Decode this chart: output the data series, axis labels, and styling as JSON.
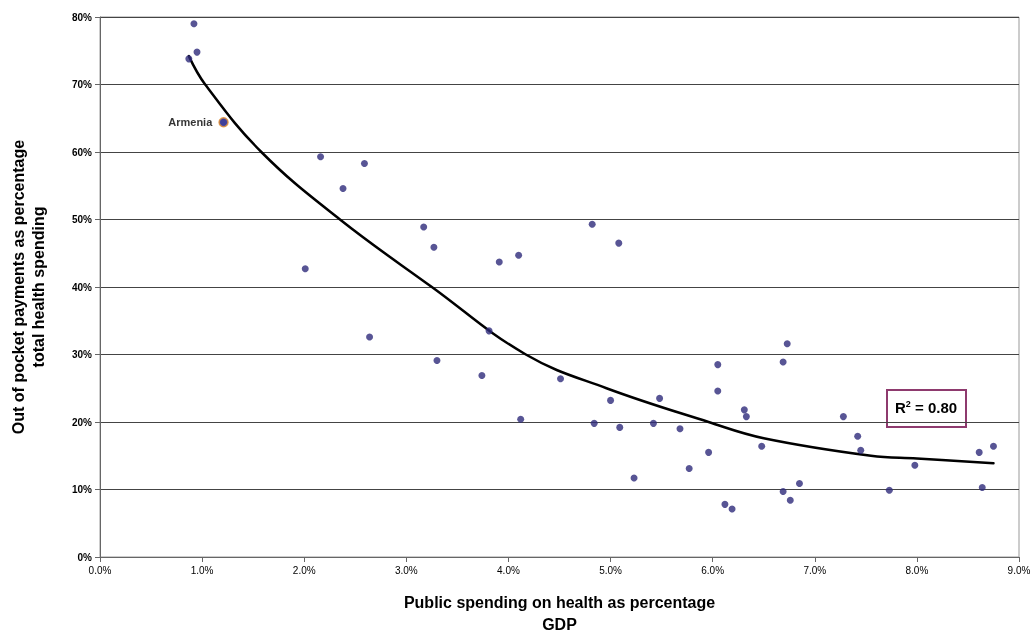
{
  "chart_data": {
    "type": "scatter",
    "xlabel": "Public spending on health as percentage\nGDP",
    "ylabel": "Out of pocket payments as percentage\ntotal health spending",
    "marker": "circle",
    "grid": "y",
    "xlim": [
      0,
      9
    ],
    "ylim": [
      0,
      80
    ],
    "xticks": [
      {
        "value": 0,
        "label": "0.0%"
      },
      {
        "value": 1,
        "label": "1.0%"
      },
      {
        "value": 2,
        "label": "2.0%"
      },
      {
        "value": 3,
        "label": "3.0%"
      },
      {
        "value": 4,
        "label": "4.0%"
      },
      {
        "value": 5,
        "label": "5.0%"
      },
      {
        "value": 6,
        "label": "6.0%"
      },
      {
        "value": 7,
        "label": "7.0%"
      },
      {
        "value": 8,
        "label": "8.0%"
      },
      {
        "value": 9,
        "label": "9.0%"
      }
    ],
    "yticks": [
      {
        "value": 0,
        "label": "0%"
      },
      {
        "value": 10,
        "label": "10%"
      },
      {
        "value": 20,
        "label": "20%"
      },
      {
        "value": 30,
        "label": "30%"
      },
      {
        "value": 40,
        "label": "40%"
      },
      {
        "value": 50,
        "label": "50%"
      },
      {
        "value": 60,
        "label": "60%"
      },
      {
        "value": 70,
        "label": "70%"
      },
      {
        "value": 80,
        "label": "80%"
      }
    ],
    "series": [
      {
        "color": "#2e2a7a",
        "x": [
          0.87,
          0.92,
          0.95,
          1.21,
          2.01,
          2.16,
          2.38,
          2.59,
          2.64,
          3.17,
          3.27,
          3.3,
          3.91,
          4.1,
          3.74,
          3.81,
          4.12,
          4.51,
          4.82,
          5.08,
          4.84,
          5.0,
          5.09,
          5.23,
          5.42,
          5.48,
          5.68,
          5.77,
          5.96,
          6.05,
          6.05,
          6.12,
          6.19,
          6.31,
          6.33,
          6.48,
          6.69,
          6.69,
          6.73,
          6.76,
          6.85,
          7.28,
          7.42,
          7.45,
          7.73,
          7.98,
          8.61,
          8.64,
          8.75
        ],
        "values": [
          73.8,
          79.0,
          74.8,
          64.4,
          42.7,
          59.3,
          54.6,
          58.3,
          32.6,
          48.9,
          45.9,
          29.1,
          43.7,
          44.7,
          26.9,
          33.5,
          20.4,
          26.4,
          49.3,
          46.5,
          19.8,
          23.2,
          19.2,
          11.7,
          19.8,
          23.5,
          19.0,
          13.1,
          15.5,
          28.5,
          24.6,
          7.8,
          7.1,
          21.8,
          20.8,
          16.4,
          9.7,
          28.9,
          31.6,
          8.4,
          10.9,
          20.8,
          17.9,
          15.8,
          9.9,
          13.6,
          15.5,
          10.3,
          16.4
        ]
      },
      {
        "type": "line",
        "color": "#000000",
        "marker": "none",
        "line_style": "solid",
        "x": [
          0.87,
          1.03,
          1.58,
          2.35,
          3.25,
          4.17,
          4.96,
          5.96,
          6.5,
          7.55,
          8.0,
          8.75
        ],
        "values": [
          74.2,
          70,
          60,
          50,
          40,
          30,
          25,
          20,
          17.6,
          15,
          14.6,
          13.9
        ]
      }
    ],
    "annotations": [
      {
        "text": "Armenia",
        "x": 1.21,
        "y": 64.4
      },
      "R$^{2}$ = 0.80"
    ]
  }
}
